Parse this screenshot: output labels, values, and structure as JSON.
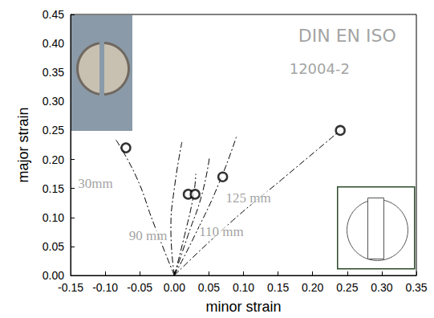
{
  "chart_data": {
    "type": "scatter",
    "x_label": "minor strain",
    "y_label": "major strain",
    "xlim": [
      -0.15,
      0.35
    ],
    "ylim": [
      0,
      0.45
    ],
    "xticks": [
      {
        "value": -0.15,
        "label": "-0.15"
      },
      {
        "value": -0.1,
        "label": "-0.10"
      },
      {
        "value": -0.05,
        "label": "-0.05"
      },
      {
        "value": 0,
        "label": "0.00"
      },
      {
        "value": 0.05,
        "label": "0.05"
      },
      {
        "value": 0.1,
        "label": "0.10"
      },
      {
        "value": 0.15,
        "label": "0.15"
      },
      {
        "value": 0.2,
        "label": "0.20"
      },
      {
        "value": 0.25,
        "label": "0.25"
      },
      {
        "value": 0.3,
        "label": "0.30"
      },
      {
        "value": 0.35,
        "label": "0.35"
      }
    ],
    "yticks": [
      {
        "value": 0,
        "label": "0.00"
      },
      {
        "value": 0.05,
        "label": "0.05"
      },
      {
        "value": 0.1,
        "label": "0.10"
      },
      {
        "value": 0.15,
        "label": "0.15"
      },
      {
        "value": 0.2,
        "label": "0.20"
      },
      {
        "value": 0.25,
        "label": "0.25"
      },
      {
        "value": 0.3,
        "label": "0.30"
      },
      {
        "value": 0.35,
        "label": "0.35"
      },
      {
        "value": 0.4,
        "label": "0.40"
      },
      {
        "value": 0.45,
        "label": "0.45"
      }
    ],
    "grid": false,
    "series": [
      {
        "type": "scatter",
        "color": "#000000",
        "marker": "open_circle",
        "x": [
          -0.07,
          0.02,
          0.03,
          0.07,
          0.24
        ],
        "values": [
          0.22,
          0.14,
          0.14,
          0.17,
          0.25
        ]
      }
    ],
    "strain_paths": {
      "type": "line",
      "color": "#000000",
      "line_style": "dashdot",
      "paths": [
        [
          [
            0,
            0
          ],
          [
            -0.03,
            0.09
          ],
          [
            -0.055,
            0.17
          ],
          [
            -0.085,
            0.235
          ]
        ],
        [
          [
            0,
            0
          ],
          [
            -0.005,
            0.08
          ],
          [
            0.0,
            0.15
          ],
          [
            0.011,
            0.23
          ]
        ],
        [
          [
            0,
            0
          ],
          [
            0.015,
            0.07
          ],
          [
            0.028,
            0.14
          ],
          [
            0.031,
            0.175
          ]
        ],
        [
          [
            0,
            0
          ],
          [
            0.02,
            0.07
          ],
          [
            0.04,
            0.14
          ],
          [
            0.051,
            0.205
          ]
        ],
        [
          [
            0,
            0
          ],
          [
            0.03,
            0.07
          ],
          [
            0.065,
            0.16
          ],
          [
            0.09,
            0.24
          ]
        ],
        [
          [
            0,
            0
          ],
          [
            0.08,
            0.09
          ],
          [
            0.16,
            0.17
          ],
          [
            0.24,
            0.25
          ]
        ]
      ]
    },
    "annotations": [
      {
        "text": "30mm",
        "x": -0.114,
        "y": 0.159
      },
      {
        "text": "90 mm",
        "x": -0.038,
        "y": 0.069
      },
      {
        "text": "110 mm",
        "x": 0.068,
        "y": 0.075
      },
      {
        "text": "125 mm",
        "x": 0.107,
        "y": 0.134
      },
      {
        "text": "DIN EN ISO",
        "x": 0.25,
        "y": 0.413
      },
      {
        "text": "12004-2",
        "x": 0.21,
        "y": 0.357
      }
    ]
  }
}
